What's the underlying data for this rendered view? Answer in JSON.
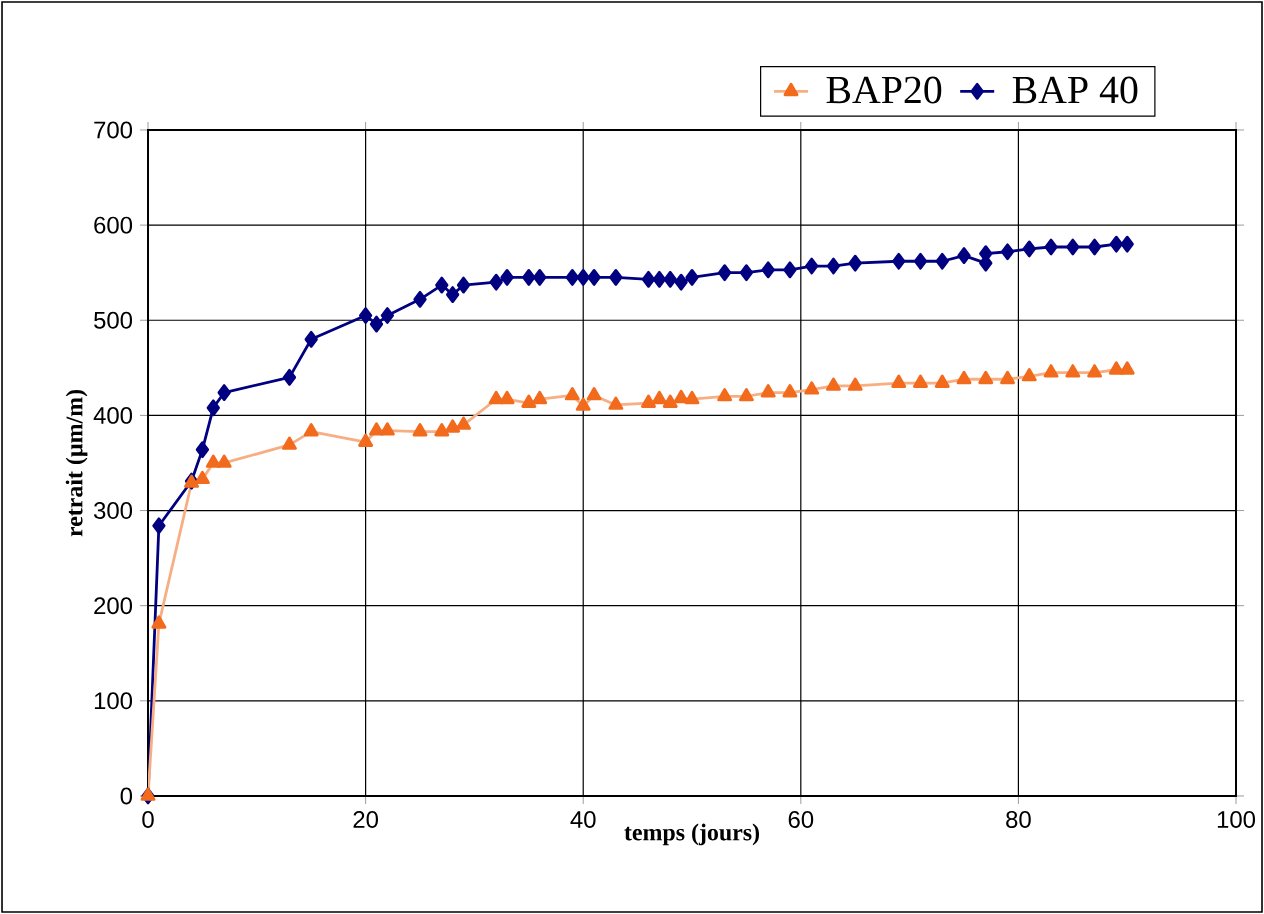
{
  "chart_data": {
    "type": "line",
    "xlabel": "temps (jours)",
    "ylabel": "retrait (µm/m)",
    "xlim": [
      0,
      100
    ],
    "ylim": [
      0,
      700
    ],
    "xticks": [
      0,
      20,
      40,
      60,
      80,
      100
    ],
    "yticks": [
      0,
      100,
      200,
      300,
      400,
      500,
      600,
      700
    ],
    "grid": true,
    "legend": "top right",
    "series": [
      {
        "name": "BAP20",
        "color": "#f26b1d",
        "marker": "triangle",
        "x": [
          0,
          1,
          4,
          5,
          6,
          7,
          13,
          15,
          20,
          21,
          22,
          25,
          27,
          28,
          29,
          32,
          33,
          35,
          36,
          39,
          40,
          41,
          43,
          46,
          47,
          48,
          49,
          50,
          53,
          55,
          57,
          59,
          61,
          63,
          65,
          69,
          71,
          73,
          75,
          77,
          79,
          81,
          83,
          85,
          87,
          89,
          90
        ],
        "values": [
          0,
          181,
          329,
          333,
          350,
          350,
          369,
          383,
          372,
          384,
          384,
          383,
          383,
          387,
          390,
          417,
          417,
          413,
          417,
          421,
          410,
          421,
          411,
          413,
          417,
          413,
          418,
          417,
          420,
          420,
          424,
          424,
          427,
          431,
          431,
          434,
          434,
          434,
          438,
          438,
          438,
          441,
          445,
          445,
          445,
          448,
          448
        ]
      },
      {
        "name": "BAP 40",
        "color": "#000080",
        "marker": "diamond",
        "x": [
          0,
          1,
          4,
          5,
          6,
          7,
          13,
          15,
          20,
          21,
          22,
          25,
          27,
          28,
          29,
          32,
          33,
          35,
          36,
          39,
          40,
          41,
          43,
          46,
          47,
          48,
          49,
          50,
          53,
          55,
          57,
          59,
          61,
          63,
          65,
          69,
          71,
          73,
          75,
          77,
          77,
          79,
          81,
          83,
          85,
          87,
          89,
          90
        ],
        "values": [
          0,
          284,
          331,
          364,
          408,
          424,
          440,
          480,
          505,
          496,
          505,
          522,
          537,
          527,
          537,
          540,
          545,
          545,
          545,
          545,
          545,
          545,
          545,
          543,
          543,
          543,
          540,
          545,
          550,
          550,
          553,
          553,
          557,
          557,
          560,
          562,
          562,
          562,
          568,
          560,
          570,
          572,
          575,
          577,
          577,
          577,
          580,
          580
        ]
      }
    ]
  }
}
